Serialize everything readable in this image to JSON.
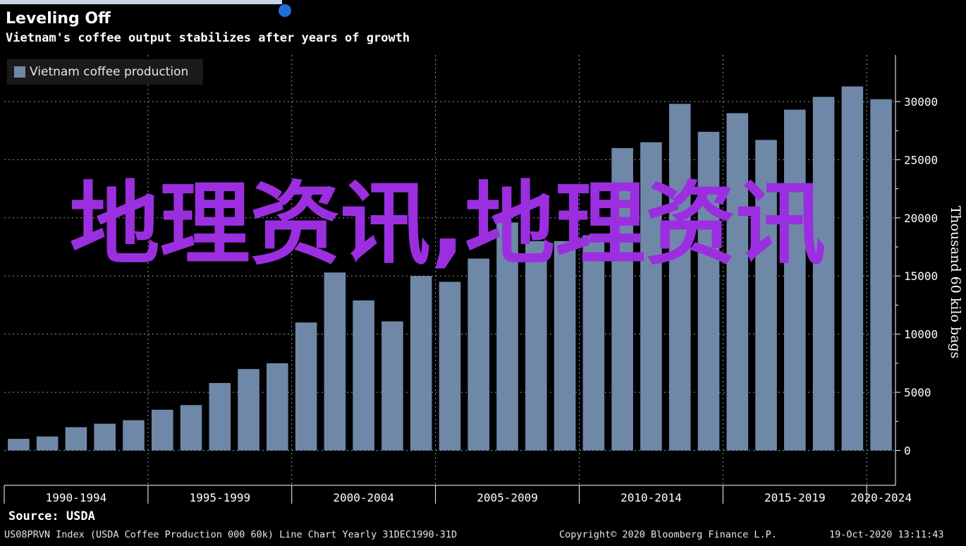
{
  "chart_data": {
    "type": "bar",
    "title": "Leveling Off",
    "subtitle": "Vietnam's coffee output stabilizes after years of growth",
    "series": [
      {
        "name": "Vietnam coffee production",
        "color": "#7088a8",
        "values": [
          1000,
          1200,
          2000,
          2300,
          2600,
          3500,
          3900,
          5800,
          7000,
          7500,
          11000,
          15300,
          12900,
          11100,
          15000,
          14500,
          16500,
          19600,
          18000,
          18000,
          18500,
          26000,
          26500,
          29800,
          27400,
          29000,
          26700,
          29300,
          30400,
          31300,
          30200
        ]
      }
    ],
    "x": [
      1990,
      1991,
      1992,
      1993,
      1994,
      1995,
      1996,
      1997,
      1998,
      1999,
      2000,
      2001,
      2002,
      2003,
      2004,
      2005,
      2006,
      2007,
      2008,
      2009,
      2010,
      2011,
      2012,
      2013,
      2014,
      2015,
      2016,
      2017,
      2018,
      2019,
      2020
    ],
    "categories": [
      "1990-1994",
      "1995-1999",
      "2000-2004",
      "2005-2009",
      "2010-2014",
      "2015-2019",
      "2020-2024"
    ],
    "ylabel": "Thousand 60 kilo bags",
    "yticks": [
      0,
      5000,
      10000,
      15000,
      20000,
      25000,
      30000
    ],
    "ylim": [
      -3000,
      34000
    ],
    "y_axis_side": "right",
    "grid": true,
    "legend_position": "top-left",
    "background": "#000000"
  },
  "source": "Source: USDA",
  "footer": {
    "index": "US08PRVN Index (USDA Coffee Production 000 60k) Line Chart  Yearly 31DEC1990-31D",
    "copyright": "Copyright© 2020 Bloomberg Finance L.P.",
    "timestamp": "19-Oct-2020 13:11:43"
  },
  "watermark": "地理资讯,地理资讯"
}
